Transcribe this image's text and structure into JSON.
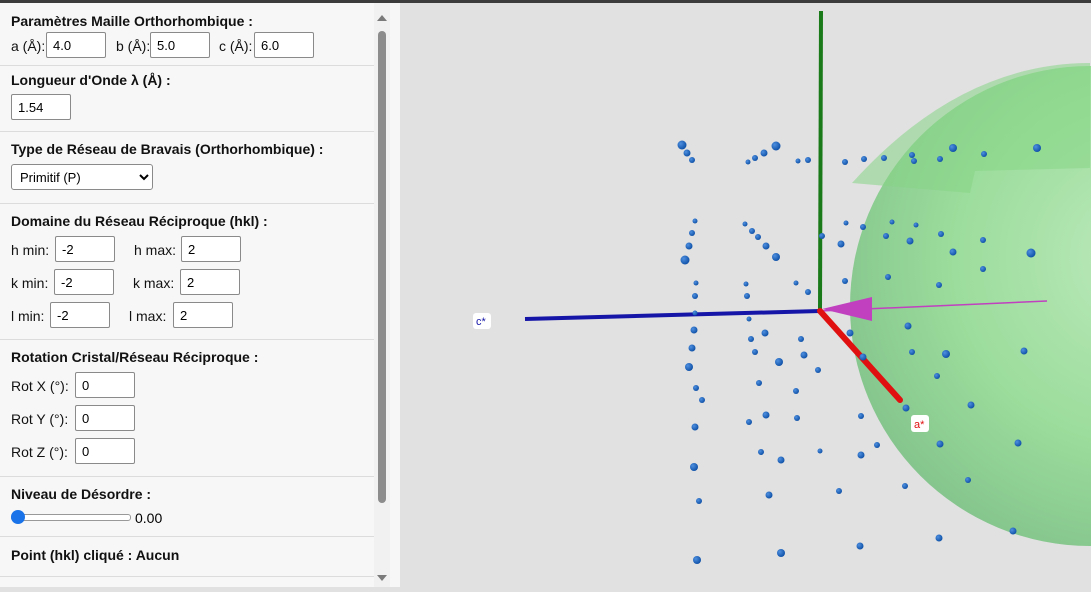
{
  "panel": {
    "lattice": {
      "title": "Paramètres Maille Orthorhombique :",
      "a_label": "a (Å):",
      "a_value": "4.0",
      "b_label": "b (Å):",
      "b_value": "5.0",
      "c_label": "c (Å):",
      "c_value": "6.0"
    },
    "wavelength": {
      "title": "Longueur d'Onde λ (Å) :",
      "value": "1.54"
    },
    "bravais": {
      "title": "Type de Réseau de Bravais (Orthorhombique) :",
      "selected": "Primitif (P)"
    },
    "domain": {
      "title": "Domaine du Réseau Réciproque (hkl) :",
      "hmin_label": "h min:",
      "hmin": "-2",
      "hmax_label": "h max:",
      "hmax": "2",
      "kmin_label": "k min:",
      "kmin": "-2",
      "kmax_label": "k max:",
      "kmax": "2",
      "lmin_label": "l min:",
      "lmin": "-2",
      "lmax_label": "l max:",
      "lmax": "2"
    },
    "rotation": {
      "title": "Rotation Cristal/Réseau Réciproque :",
      "x_label": "Rot X (°):",
      "x_value": "0",
      "y_label": "Rot Y (°):",
      "y_value": "0",
      "z_label": "Rot Z (°):",
      "z_value": "0"
    },
    "disorder": {
      "title": "Niveau de Désordre :",
      "value_text": "0.00",
      "level": 0
    },
    "clicked": {
      "title": "Point (hkl) cliqué : Aucun"
    }
  },
  "viewport": {
    "axis_c_label": "c*",
    "axis_a_label": "a*",
    "colors": {
      "background": "#e1e1e1",
      "sphere": "#7fd67f",
      "point": "#1565c0",
      "axis_a": "#e01010",
      "axis_b": "#1a7a1a",
      "axis_c": "#1515a8",
      "beam": "#c040c0"
    }
  }
}
